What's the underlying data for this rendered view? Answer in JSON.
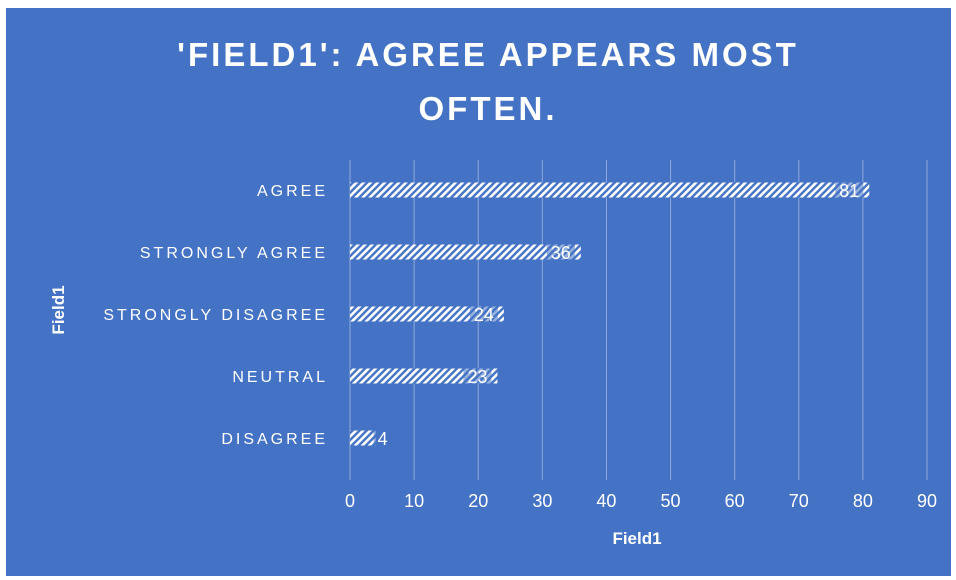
{
  "chart_data": {
    "type": "bar",
    "orientation": "horizontal",
    "title_lines": [
      "'FIELD1': AGREE APPEARS MOST",
      "OFTEN."
    ],
    "categories": [
      "AGREE",
      "STRONGLY AGREE",
      "STRONGLY DISAGREE",
      "NEUTRAL",
      "DISAGREE"
    ],
    "values": [
      81,
      36,
      24,
      23,
      4
    ],
    "xlabel": "Field1",
    "ylabel": "Field1",
    "xlim": [
      0,
      90
    ],
    "xticks": [
      0,
      10,
      20,
      30,
      40,
      50,
      60,
      70,
      80,
      90
    ],
    "grid": true,
    "legend": "none",
    "colors": {
      "background": "#4472C4",
      "bar_pattern": "#ffffff",
      "gridline": "#8FAADC",
      "text": "#ffffff"
    }
  }
}
